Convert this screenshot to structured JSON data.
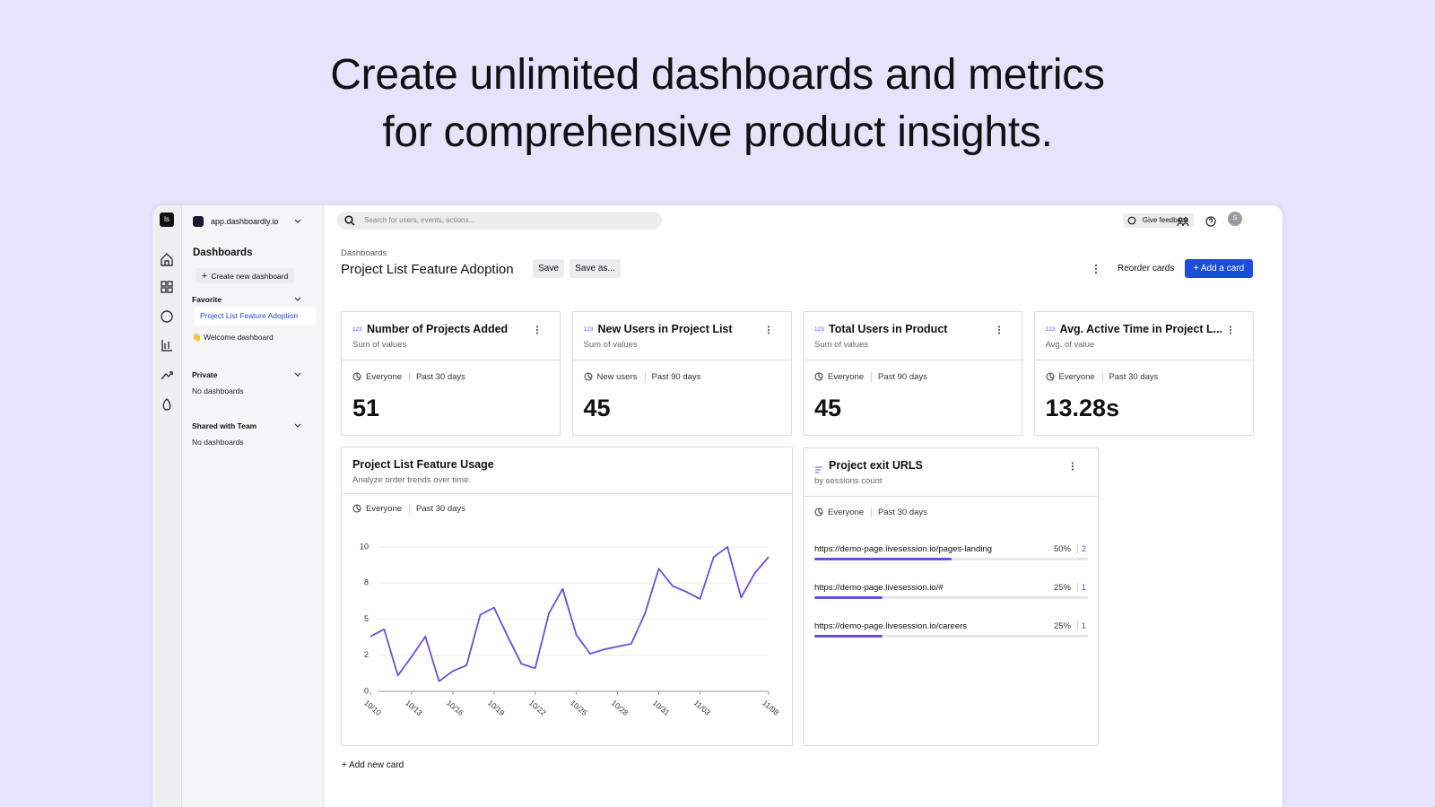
{
  "headline": {
    "lines": [
      "Create unlimited dashboards and metrics",
      "for comprehensive product insights."
    ]
  },
  "sidebar": {
    "logo": "ls",
    "workspace": "app.dashboardly.io",
    "section": "Dashboards",
    "create_button": "Create new dashboard",
    "groups": [
      {
        "title": "Favorite",
        "items": [
          "Project List Feature Adoption",
          "👋 Welcome dashboard"
        ]
      },
      {
        "title": "Private",
        "items": [
          "No dashboards"
        ]
      },
      {
        "title": "Shared with Team",
        "items": [
          "No dashboards"
        ]
      }
    ]
  },
  "topbar": {
    "search_placeholder": "Search for users, events, actions...",
    "feedback": "Give feedback",
    "avatar": "S"
  },
  "header": {
    "breadcrumb": "Dashboards",
    "title": "Project List Feature Adoption",
    "save": "Save",
    "save_as": "Save as...",
    "reorder": "Reorder cards",
    "add": "Add a card"
  },
  "metric_cards": [
    {
      "icon": "123",
      "title": "Number of Projects Added",
      "subtitle": "Sum of values",
      "segment": "Everyone",
      "period": "Past 30 days",
      "value": "51"
    },
    {
      "icon": "123",
      "title": "New Users in Project List",
      "subtitle": "Sum of values",
      "segment": "New users",
      "period": "Past 90 days",
      "value": "45"
    },
    {
      "icon": "123",
      "title": "Total Users in Product",
      "subtitle": "Sum of values",
      "segment": "Everyone",
      "period": "Past 90 days",
      "value": "45"
    },
    {
      "icon": "123",
      "title": "Avg. Active Time in Project L...",
      "subtitle": "Avg. of value",
      "segment": "Everyone",
      "period": "Past 30 days",
      "value": "13.28s"
    }
  ],
  "chart_data": {
    "type": "line",
    "title": "Project List Feature Usage",
    "subtitle": "Analyze order trends over time.",
    "segment": "Everyone",
    "period": "Past 30 days",
    "categories": [
      "10/10",
      null,
      null,
      "10/13",
      null,
      null,
      "10/16",
      null,
      null,
      "10/19",
      null,
      null,
      "10/22",
      null,
      null,
      "10/25",
      null,
      null,
      "10/28",
      null,
      null,
      "10/31",
      null,
      null,
      "11/03",
      null,
      null,
      null,
      null,
      "11/08"
    ],
    "values": [
      3.8,
      4.3,
      1.1,
      2.4,
      3.8,
      0.7,
      1.4,
      1.8,
      5.3,
      5.8,
      3.8,
      1.9,
      1.6,
      5.4,
      7.1,
      3.9,
      2.6,
      2.9,
      3.1,
      3.3,
      5.4,
      8.5,
      7.3,
      6.9,
      6.4,
      9.3,
      10,
      6.5,
      8.2,
      9.3
    ],
    "color": "#6a4fd6",
    "ylim": [
      0,
      10
    ],
    "yticks": [
      0,
      {
        "value": 2.5,
        "label": "2"
      },
      5,
      {
        "value": 7.5,
        "label": "8"
      },
      10
    ],
    "grid": true
  },
  "exit_urls": {
    "title": "Project exit URLS",
    "subtitle": "by sessions count",
    "segment": "Everyone",
    "period": "Past 30 days",
    "urls": [
      "https://demo-page.livesession.io/pages-landing",
      "https://demo-page.livesession.io/#",
      "https://demo-page.livesession.io/careers"
    ],
    "values": [
      50,
      25,
      25
    ],
    "value_labels": [
      "50%",
      "25%",
      "25%"
    ],
    "counts": [
      2,
      1,
      1
    ],
    "xlim": [
      0,
      100
    ],
    "color": "#6a4fd6"
  },
  "footer": {
    "add_card": "Add new card"
  }
}
